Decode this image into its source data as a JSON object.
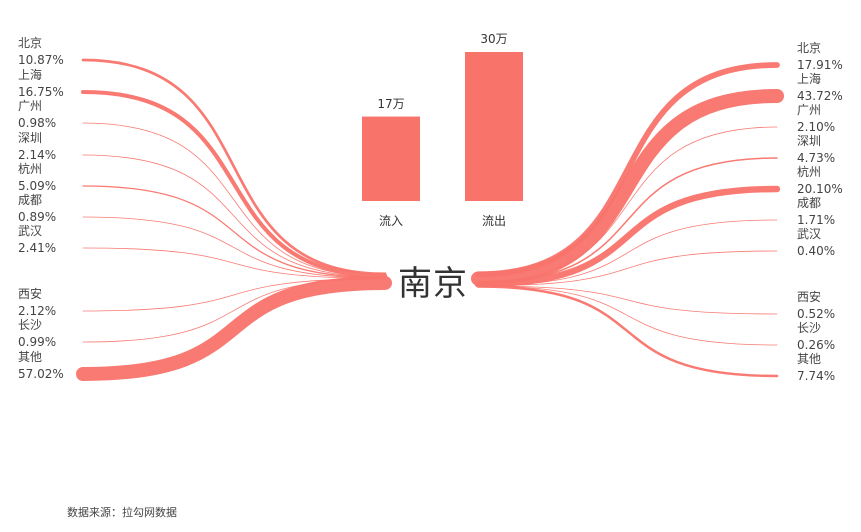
{
  "chart_data": {
    "type": "sankey",
    "center_city": "南京",
    "color": "#f8736a",
    "inflow": {
      "categories": [
        "北京",
        "上海",
        "广州",
        "深圳",
        "杭州",
        "成都",
        "武汉",
        "西安",
        "长沙",
        "其他"
      ],
      "values": [
        "10.87%",
        "16.75%",
        "0.98%",
        "2.14%",
        "5.09%",
        "0.89%",
        "2.41%",
        "2.12%",
        "0.99%",
        "57.02%"
      ],
      "numeric": [
        10.87,
        16.75,
        0.98,
        2.14,
        5.09,
        0.89,
        2.41,
        2.12,
        0.99,
        57.02
      ]
    },
    "outflow": {
      "categories": [
        "北京",
        "上海",
        "广州",
        "深圳",
        "杭州",
        "成都",
        "武汉",
        "西安",
        "长沙",
        "其他"
      ],
      "values": [
        "17.91%",
        "43.72%",
        "2.10%",
        "4.73%",
        "20.10%",
        "1.71%",
        "0.40%",
        "0.52%",
        "0.26%",
        "7.74%"
      ],
      "numeric": [
        17.91,
        43.72,
        2.1,
        4.73,
        20.1,
        1.71,
        0.4,
        0.52,
        0.26,
        7.74
      ]
    },
    "bars": {
      "type": "bar",
      "categories": [
        "流入",
        "流出"
      ],
      "values": [
        17,
        30
      ],
      "labels": [
        "17万",
        "30万"
      ]
    }
  },
  "source": "数据来源：拉勾网数据"
}
